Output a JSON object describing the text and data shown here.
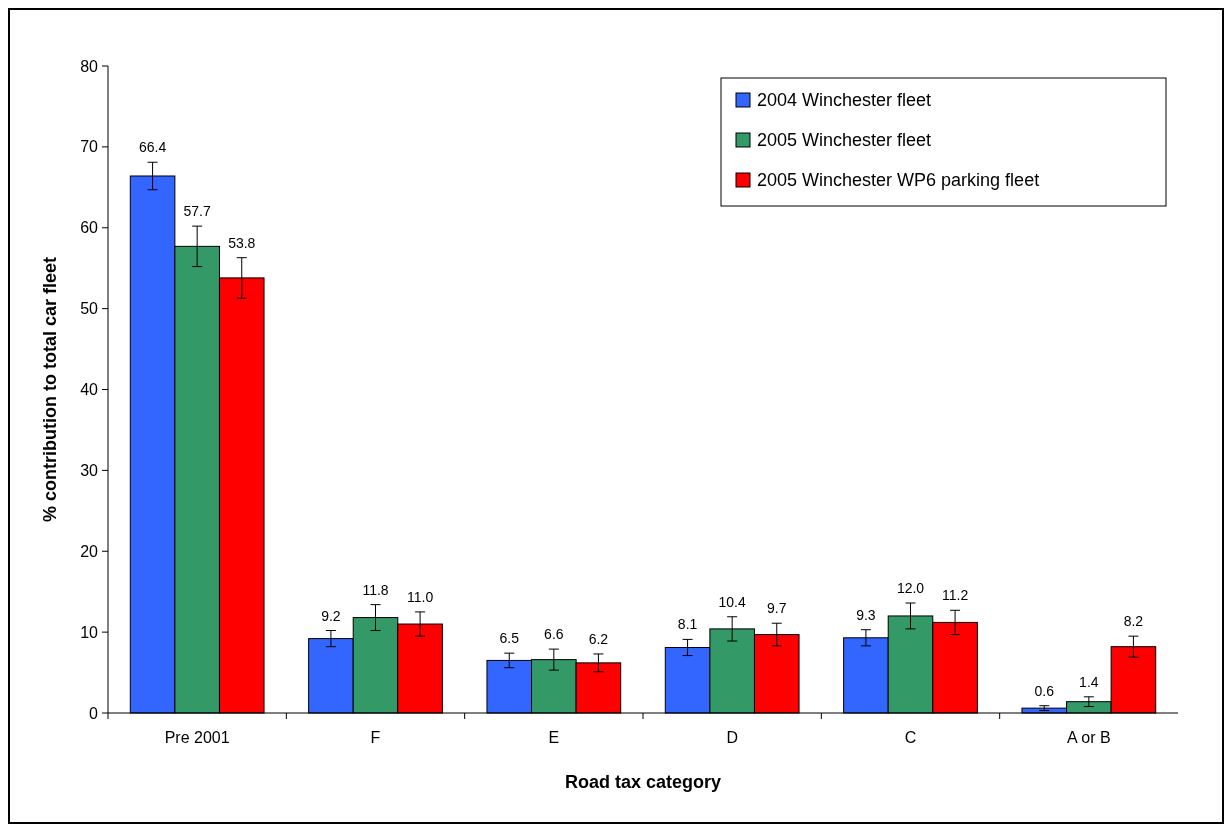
{
  "chart_data": {
    "type": "bar",
    "xlabel": "Road tax category",
    "ylabel": "% contribution to total car fleet",
    "categories": [
      "Pre 2001",
      "F",
      "E",
      "D",
      "C",
      "A or B"
    ],
    "series": [
      {
        "name": "2004 Winchester fleet",
        "color": "#3366ff",
        "values": [
          66.4,
          9.2,
          6.5,
          8.1,
          9.3,
          0.6
        ],
        "errors": [
          1.7,
          1.0,
          0.9,
          1.0,
          1.0,
          0.3
        ],
        "value_labels": [
          "66.4",
          "9.2",
          "6.5",
          "8.1",
          "9.3",
          "0.6"
        ]
      },
      {
        "name": "2005 Winchester fleet",
        "color": "#339966",
        "values": [
          57.7,
          11.8,
          6.6,
          10.4,
          12.0,
          1.4
        ],
        "errors": [
          2.5,
          1.6,
          1.3,
          1.5,
          1.6,
          0.6
        ],
        "value_labels": [
          "57.7",
          "11.8",
          "6.6",
          "10.4",
          "12.0",
          "1.4"
        ]
      },
      {
        "name": "2005 Winchester WP6 parking fleet",
        "color": "#ff0000",
        "values": [
          53.8,
          11.0,
          6.2,
          9.7,
          11.2,
          8.2
        ],
        "errors": [
          2.5,
          1.5,
          1.1,
          1.4,
          1.5,
          1.3
        ],
        "value_labels": [
          "53.8",
          "11.0",
          "6.2",
          "9.7",
          "11.2",
          "8.2"
        ]
      }
    ],
    "ylim": [
      0,
      80
    ],
    "yticks": [
      0,
      10,
      20,
      30,
      40,
      50,
      60,
      70,
      80
    ],
    "grid": false,
    "legend": "top right"
  }
}
